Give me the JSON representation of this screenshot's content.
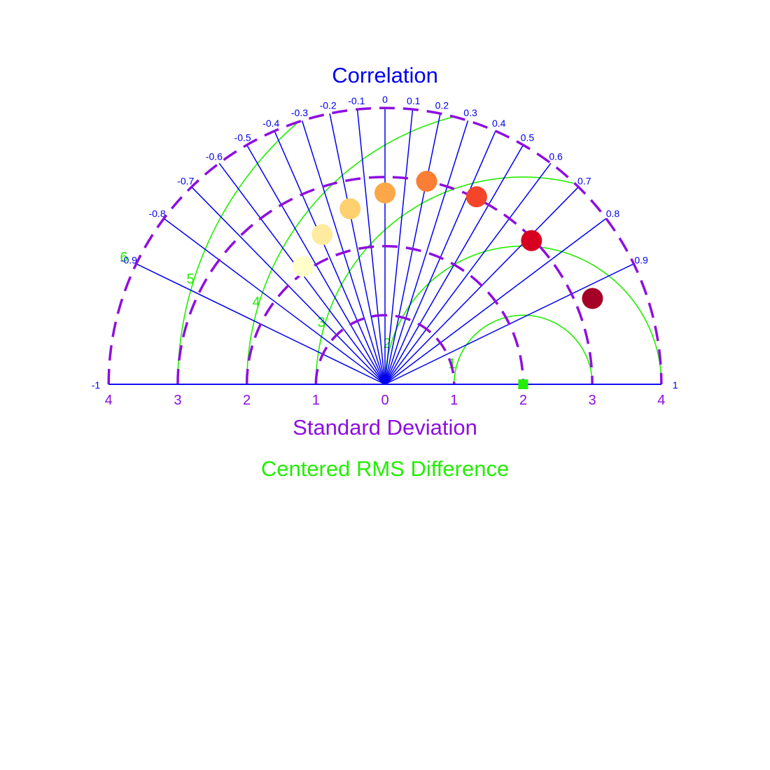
{
  "colors": {
    "correlation": "#0000ee",
    "std_dev": "#8e0ee0",
    "rms": "#22ee00",
    "reference": "#22ee00"
  },
  "chart_data": {
    "type": "scatter",
    "subtype": "taylor-diagram",
    "title_correlation": "Correlation",
    "xlabel": "Standard Deviation",
    "rms_label": "Centered RMS Difference",
    "sd_range": [
      0,
      4
    ],
    "correlation_range": [
      -1,
      1
    ],
    "correlation_ticks": [
      "-1",
      "-0.9",
      "-0.8",
      "-0.7",
      "-0.6",
      "-0.5",
      "-0.4",
      "-0.3",
      "-0.2",
      "-0.1",
      "0",
      "0.1",
      "0.2",
      "0.3",
      "0.4",
      "0.5",
      "0.6",
      "0.7",
      "0.8",
      "0.9",
      "1"
    ],
    "sd_ticks_right": [
      "0",
      "1",
      "2",
      "3",
      "4"
    ],
    "sd_ticks_left": [
      "1",
      "2",
      "3",
      "4"
    ],
    "sd_dashed_circles": [
      1,
      2,
      3,
      4
    ],
    "rms_contours": [
      1,
      2,
      3,
      4,
      5,
      6
    ],
    "rms_contour_labels": [
      "1",
      "2",
      "3",
      "4",
      "5",
      "6"
    ],
    "reference_point": {
      "std_dev": 2.0,
      "correlation": 1.0
    },
    "points": [
      {
        "std_dev": 3.25,
        "correlation": 0.924,
        "color": "#a50026"
      },
      {
        "std_dev": 2.97,
        "correlation": 0.714,
        "color": "#d7001e"
      },
      {
        "std_dev": 3.02,
        "correlation": 0.439,
        "color": "#f4442a"
      },
      {
        "std_dev": 3.0,
        "correlation": 0.201,
        "color": "#fb7e35"
      },
      {
        "std_dev": 2.77,
        "correlation": 0.0,
        "color": "#fca848"
      },
      {
        "std_dev": 2.59,
        "correlation": -0.195,
        "color": "#fed06e"
      },
      {
        "std_dev": 2.35,
        "correlation": -0.387,
        "color": "#feeb9f"
      },
      {
        "std_dev": 2.08,
        "correlation": -0.571,
        "color": "#ffffcb"
      }
    ]
  }
}
